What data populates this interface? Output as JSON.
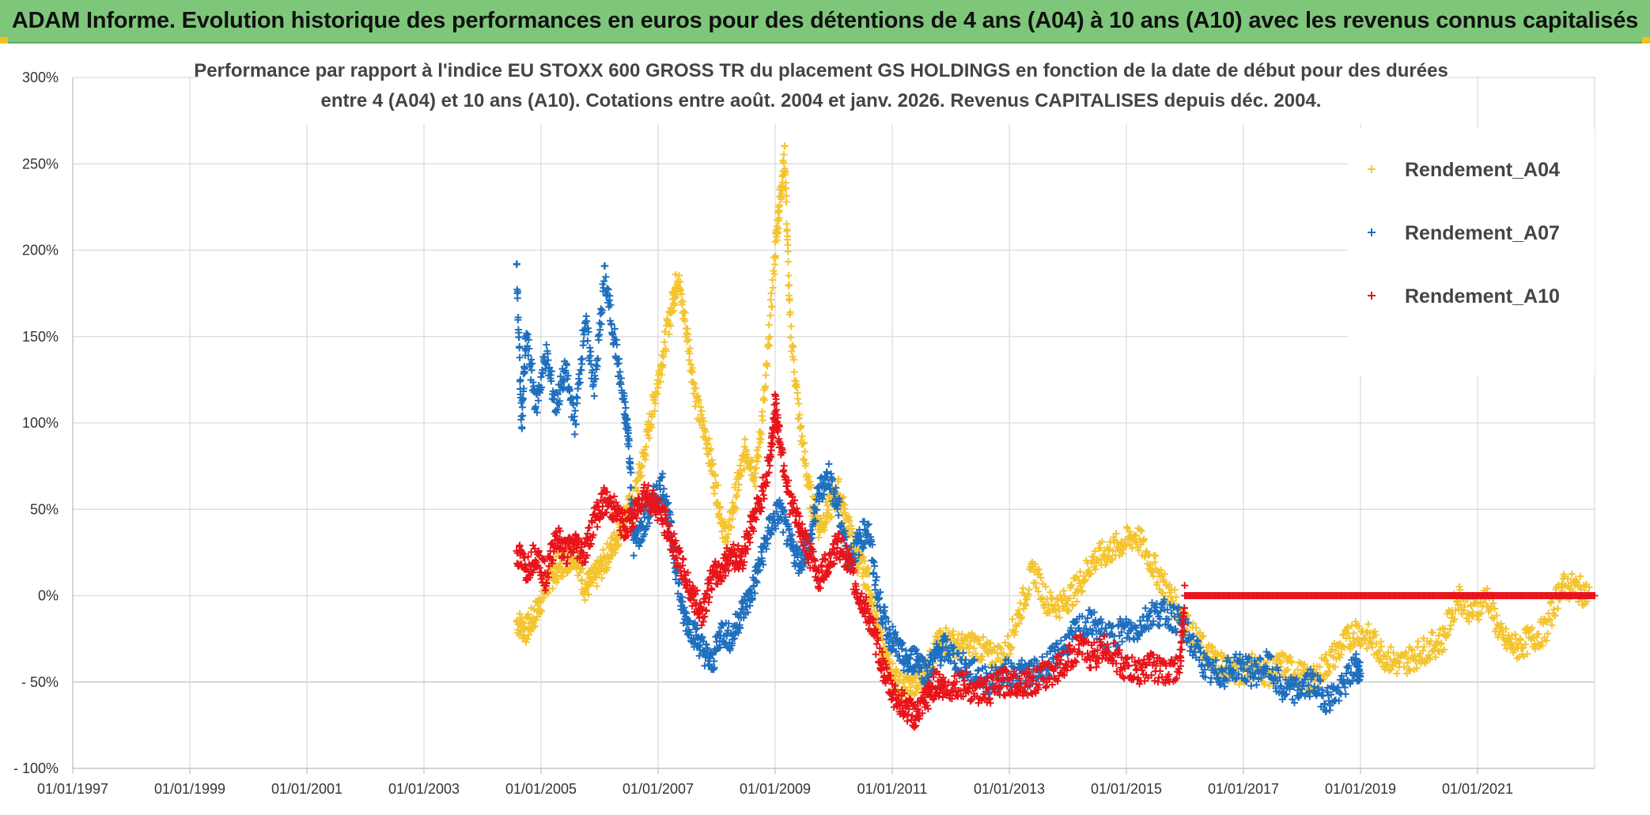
{
  "banner": {
    "title": "ADAM Informe. Evolution historique des performances en euros pour des détentions de 4 ans (A04) à 10 ans (A10) avec les revenus connus capitalisés"
  },
  "colors": {
    "banner_bg": "#7ec77a",
    "a04": "#f4c430",
    "a07": "#1f6fbf",
    "a10": "#e8141b",
    "grid": "#d9d9d9"
  },
  "chart_data": {
    "type": "scatter",
    "title_lines": [
      "Performance par rapport à l'indice EU STOXX 600 GROSS TR  du placement GS HOLDINGS en fonction de la date de début pour des durées",
      "entre 4 (A04) et 10 ans (A10). Cotations entre août. 2004 et janv. 2026. Revenus CAPITALISES depuis déc. 2004."
    ],
    "xlabel": "",
    "ylabel": "",
    "x_range": [
      "1997-01-01",
      "2023-01-01"
    ],
    "x_tick_labels": [
      "01/01/1997",
      "01/01/1999",
      "01/01/2001",
      "01/01/2003",
      "01/01/2005",
      "01/01/2007",
      "01/01/2009",
      "01/01/2011",
      "01/01/2013",
      "01/01/2015",
      "01/01/2017",
      "01/01/2019",
      "01/01/2021"
    ],
    "y_range": [
      -100,
      300
    ],
    "y_tick_labels": [
      "300%",
      "250%",
      "200%",
      "150%",
      "100%",
      "50%",
      "0%",
      "- 50%",
      "- 100%"
    ],
    "grid": true,
    "legend_position": "top-right",
    "marker": "+",
    "series": [
      {
        "name": "Rendement_A04",
        "color": "#f4c430",
        "points": [
          [
            "2004-08",
            -15
          ],
          [
            "2004-10",
            -20
          ],
          [
            "2004-12",
            -10
          ],
          [
            "2005-02",
            5
          ],
          [
            "2005-04",
            15
          ],
          [
            "2005-06",
            20
          ],
          [
            "2005-08",
            25
          ],
          [
            "2005-10",
            5
          ],
          [
            "2005-12",
            10
          ],
          [
            "2006-02",
            20
          ],
          [
            "2006-04",
            30
          ],
          [
            "2006-06",
            45
          ],
          [
            "2006-08",
            55
          ],
          [
            "2006-10",
            80
          ],
          [
            "2006-12",
            110
          ],
          [
            "2007-02",
            140
          ],
          [
            "2007-04",
            170
          ],
          [
            "2007-05",
            185
          ],
          [
            "2007-07",
            150
          ],
          [
            "2007-09",
            110
          ],
          [
            "2007-11",
            90
          ],
          [
            "2008-01",
            60
          ],
          [
            "2008-03",
            30
          ],
          [
            "2008-05",
            60
          ],
          [
            "2008-07",
            85
          ],
          [
            "2008-09",
            70
          ],
          [
            "2008-11",
            120
          ],
          [
            "2009-01",
            200
          ],
          [
            "2009-02",
            230
          ],
          [
            "2009-03",
            255
          ],
          [
            "2009-04",
            160
          ],
          [
            "2009-06",
            100
          ],
          [
            "2009-08",
            60
          ],
          [
            "2009-10",
            40
          ],
          [
            "2009-12",
            50
          ],
          [
            "2010-02",
            60
          ],
          [
            "2010-04",
            40
          ],
          [
            "2010-06",
            20
          ],
          [
            "2010-08",
            10
          ],
          [
            "2010-10",
            -20
          ],
          [
            "2010-12",
            -40
          ],
          [
            "2011-02",
            -50
          ],
          [
            "2011-04",
            -55
          ],
          [
            "2011-06",
            -50
          ],
          [
            "2011-08",
            -45
          ],
          [
            "2011-10",
            -30
          ],
          [
            "2011-12",
            -25
          ],
          [
            "2012-03",
            -30
          ],
          [
            "2012-06",
            -28
          ],
          [
            "2012-09",
            -35
          ],
          [
            "2012-12",
            -35
          ],
          [
            "2013-03",
            -10
          ],
          [
            "2013-06",
            15
          ],
          [
            "2013-09",
            -5
          ],
          [
            "2013-12",
            -5
          ],
          [
            "2014-03",
            5
          ],
          [
            "2014-06",
            20
          ],
          [
            "2014-09",
            25
          ],
          [
            "2014-12",
            30
          ],
          [
            "2015-03",
            35
          ],
          [
            "2015-06",
            20
          ],
          [
            "2015-09",
            5
          ],
          [
            "2015-12",
            -10
          ],
          [
            "2016-03",
            -25
          ],
          [
            "2016-06",
            -35
          ],
          [
            "2016-09",
            -40
          ],
          [
            "2016-12",
            -45
          ],
          [
            "2017-03",
            -40
          ],
          [
            "2017-06",
            -45
          ],
          [
            "2017-09",
            -40
          ],
          [
            "2017-12",
            -45
          ],
          [
            "2018-03",
            -50
          ],
          [
            "2018-06",
            -40
          ],
          [
            "2018-09",
            -30
          ],
          [
            "2018-12",
            -20
          ],
          [
            "2019-03",
            -25
          ],
          [
            "2019-06",
            -35
          ],
          [
            "2019-09",
            -40
          ],
          [
            "2019-12",
            -35
          ],
          [
            "2020-03",
            -30
          ],
          [
            "2020-06",
            -25
          ],
          [
            "2020-09",
            0
          ],
          [
            "2020-12",
            -10
          ],
          [
            "2021-03",
            0
          ],
          [
            "2021-06",
            -25
          ],
          [
            "2021-09",
            -30
          ],
          [
            "2021-12",
            -25
          ],
          [
            "2022-03",
            -20
          ],
          [
            "2022-06",
            5
          ],
          [
            "2022-09",
            5
          ],
          [
            "2022-12",
            0
          ]
        ]
      },
      {
        "name": "Rendement_A07",
        "color": "#1f6fbf",
        "points": [
          [
            "2004-08",
            190
          ],
          [
            "2004-09",
            100
          ],
          [
            "2004-10",
            150
          ],
          [
            "2004-12",
            110
          ],
          [
            "2005-02",
            140
          ],
          [
            "2005-04",
            110
          ],
          [
            "2005-06",
            130
          ],
          [
            "2005-08",
            100
          ],
          [
            "2005-10",
            160
          ],
          [
            "2005-12",
            120
          ],
          [
            "2006-02",
            185
          ],
          [
            "2006-04",
            150
          ],
          [
            "2006-06",
            110
          ],
          [
            "2006-07",
            90
          ],
          [
            "2006-08",
            30
          ],
          [
            "2006-10",
            40
          ],
          [
            "2006-12",
            55
          ],
          [
            "2007-02",
            65
          ],
          [
            "2007-04",
            30
          ],
          [
            "2007-06",
            -10
          ],
          [
            "2007-08",
            -20
          ],
          [
            "2007-10",
            -30
          ],
          [
            "2007-12",
            -40
          ],
          [
            "2008-02",
            -20
          ],
          [
            "2008-04",
            -25
          ],
          [
            "2008-06",
            -10
          ],
          [
            "2008-08",
            0
          ],
          [
            "2008-10",
            20
          ],
          [
            "2008-12",
            40
          ],
          [
            "2009-02",
            50
          ],
          [
            "2009-04",
            30
          ],
          [
            "2009-06",
            20
          ],
          [
            "2009-08",
            30
          ],
          [
            "2009-10",
            60
          ],
          [
            "2009-12",
            70
          ],
          [
            "2010-02",
            50
          ],
          [
            "2010-04",
            20
          ],
          [
            "2010-06",
            30
          ],
          [
            "2010-08",
            40
          ],
          [
            "2010-10",
            0
          ],
          [
            "2010-12",
            -20
          ],
          [
            "2011-02",
            -30
          ],
          [
            "2011-04",
            -40
          ],
          [
            "2011-06",
            -35
          ],
          [
            "2011-08",
            -45
          ],
          [
            "2011-10",
            -35
          ],
          [
            "2011-12",
            -30
          ],
          [
            "2012-03",
            -40
          ],
          [
            "2012-06",
            -45
          ],
          [
            "2012-09",
            -50
          ],
          [
            "2012-12",
            -45
          ],
          [
            "2013-03",
            -45
          ],
          [
            "2013-06",
            -45
          ],
          [
            "2013-09",
            -40
          ],
          [
            "2013-12",
            -30
          ],
          [
            "2014-03",
            -20
          ],
          [
            "2014-06",
            -15
          ],
          [
            "2014-09",
            -25
          ],
          [
            "2014-12",
            -20
          ],
          [
            "2015-03",
            -20
          ],
          [
            "2015-06",
            -10
          ],
          [
            "2015-09",
            -10
          ],
          [
            "2015-12",
            -15
          ],
          [
            "2016-03",
            -30
          ],
          [
            "2016-06",
            -45
          ],
          [
            "2016-09",
            -45
          ],
          [
            "2016-12",
            -40
          ],
          [
            "2017-03",
            -45
          ],
          [
            "2017-06",
            -40
          ],
          [
            "2017-09",
            -55
          ],
          [
            "2017-12",
            -55
          ],
          [
            "2018-03",
            -50
          ],
          [
            "2018-06",
            -60
          ],
          [
            "2018-09",
            -55
          ],
          [
            "2018-12",
            -40
          ],
          [
            "2019-01",
            -45
          ]
        ]
      },
      {
        "name": "Rendement_A10",
        "color": "#e8141b",
        "points": [
          [
            "2004-08",
            25
          ],
          [
            "2004-10",
            15
          ],
          [
            "2004-12",
            25
          ],
          [
            "2005-02",
            10
          ],
          [
            "2005-04",
            35
          ],
          [
            "2005-06",
            25
          ],
          [
            "2005-08",
            30
          ],
          [
            "2005-10",
            25
          ],
          [
            "2005-12",
            45
          ],
          [
            "2006-02",
            55
          ],
          [
            "2006-04",
            50
          ],
          [
            "2006-06",
            40
          ],
          [
            "2006-08",
            45
          ],
          [
            "2006-10",
            60
          ],
          [
            "2006-12",
            55
          ],
          [
            "2007-02",
            45
          ],
          [
            "2007-04",
            30
          ],
          [
            "2007-06",
            15
          ],
          [
            "2007-08",
            0
          ],
          [
            "2007-10",
            -10
          ],
          [
            "2007-12",
            10
          ],
          [
            "2008-02",
            15
          ],
          [
            "2008-04",
            25
          ],
          [
            "2008-06",
            20
          ],
          [
            "2008-08",
            40
          ],
          [
            "2008-10",
            55
          ],
          [
            "2008-12",
            80
          ],
          [
            "2009-01",
            110
          ],
          [
            "2009-02",
            90
          ],
          [
            "2009-04",
            55
          ],
          [
            "2009-06",
            40
          ],
          [
            "2009-08",
            25
          ],
          [
            "2009-10",
            10
          ],
          [
            "2009-12",
            20
          ],
          [
            "2010-02",
            30
          ],
          [
            "2010-04",
            20
          ],
          [
            "2010-06",
            0
          ],
          [
            "2010-08",
            -10
          ],
          [
            "2010-10",
            -30
          ],
          [
            "2010-12",
            -50
          ],
          [
            "2011-02",
            -60
          ],
          [
            "2011-04",
            -65
          ],
          [
            "2011-06",
            -70
          ],
          [
            "2011-08",
            -60
          ],
          [
            "2011-10",
            -50
          ],
          [
            "2011-12",
            -55
          ],
          [
            "2012-03",
            -50
          ],
          [
            "2012-06",
            -55
          ],
          [
            "2012-09",
            -55
          ],
          [
            "2012-12",
            -50
          ],
          [
            "2013-03",
            -50
          ],
          [
            "2013-06",
            -50
          ],
          [
            "2013-09",
            -45
          ],
          [
            "2013-12",
            -40
          ],
          [
            "2014-03",
            -30
          ],
          [
            "2014-06",
            -35
          ],
          [
            "2014-09",
            -30
          ],
          [
            "2014-12",
            -40
          ],
          [
            "2015-03",
            -45
          ],
          [
            "2015-06",
            -40
          ],
          [
            "2015-09",
            -45
          ],
          [
            "2015-12",
            -40
          ],
          [
            "2016-01",
            0
          ],
          [
            "2017-01",
            0
          ],
          [
            "2018-01",
            0
          ],
          [
            "2019-01",
            0
          ],
          [
            "2020-01",
            0
          ],
          [
            "2021-01",
            0
          ],
          [
            "2022-01",
            0
          ],
          [
            "2023-01",
            0
          ]
        ]
      }
    ]
  }
}
